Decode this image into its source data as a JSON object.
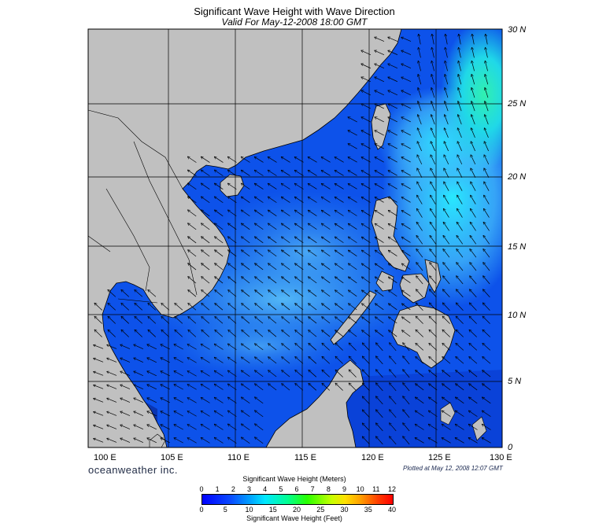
{
  "header": {
    "title": "Significant Wave Height with Wave Direction",
    "subtitle": "Valid For May-12-2008 18:00 GMT"
  },
  "map": {
    "lat_labels": [
      "30 N",
      "25 N",
      "20 N",
      "15 N",
      "10 N",
      "5 N",
      "0"
    ],
    "lon_labels": [
      "100 E",
      "105 E",
      "110 E",
      "115 E",
      "120 E",
      "125 E",
      "130 E"
    ],
    "land_color": "#c0c0c0",
    "ocean_colors": [
      "#0a3cd6",
      "#0a5cf0",
      "#1a8cf5",
      "#40b4f8",
      "#2ef0e0",
      "#30f0a0"
    ]
  },
  "footer": {
    "brand": "oceanweather inc.",
    "plotted": "Plotted at May 12, 2008 12:07 GMT"
  },
  "colorbar": {
    "title_top": "Significant Wave Height (Meters)",
    "title_bottom": "Significant Wave Height (Feet)",
    "meters": [
      "0",
      "1",
      "2",
      "3",
      "4",
      "5",
      "6",
      "7",
      "8",
      "9",
      "10",
      "11",
      "12"
    ],
    "feet": [
      "0",
      "5",
      "10",
      "15",
      "20",
      "25",
      "30",
      "35",
      "40"
    ],
    "stops": [
      "#0000ff",
      "#00a0ff",
      "#00e8ff",
      "#00ff90",
      "#28ff00",
      "#c8ff00",
      "#ffe000",
      "#ffa000",
      "#ff0000"
    ]
  }
}
